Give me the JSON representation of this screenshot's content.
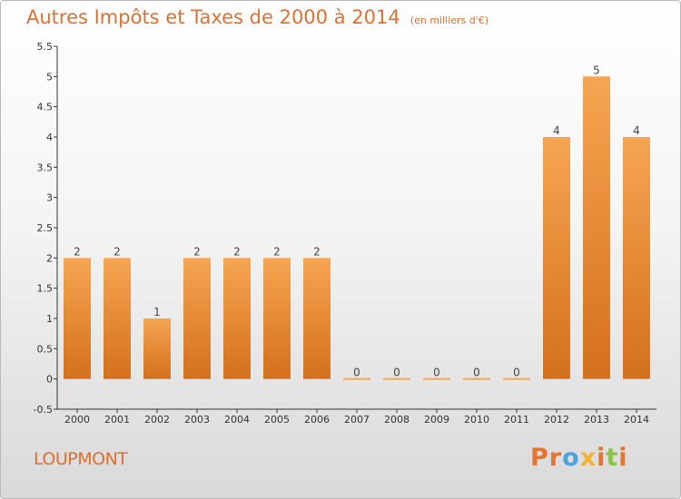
{
  "header": {
    "title": "Autres Impôts et Taxes de 2000 à 2014",
    "subtitle": "(en milliers d'€)"
  },
  "footer": {
    "commune": "LOUPMONT",
    "logo_text": "Proxiti"
  },
  "colors": {
    "title": "#e0702f",
    "bar_top": "#f6a552",
    "bar_bottom": "#d4701d",
    "axis": "#333333"
  },
  "chart_data": {
    "type": "bar",
    "categories": [
      "2000",
      "2001",
      "2002",
      "2003",
      "2004",
      "2005",
      "2006",
      "2007",
      "2008",
      "2009",
      "2010",
      "2011",
      "2012",
      "2013",
      "2014"
    ],
    "values": [
      2,
      2,
      1,
      2,
      2,
      2,
      2,
      0,
      0,
      0,
      0,
      0,
      4,
      5,
      4
    ],
    "data_labels": [
      "2",
      "2",
      "1",
      "2",
      "2",
      "2",
      "2",
      "0",
      "0",
      "0",
      "0",
      "0",
      "4",
      "5",
      "4"
    ],
    "yticks": [
      "-0.5",
      "0",
      "0.5",
      "1",
      "1.5",
      "2",
      "2.5",
      "3",
      "3.5",
      "4",
      "4.5",
      "5",
      "5.5"
    ],
    "ylim": [
      -0.5,
      5.5
    ],
    "title": "Autres Impôts et Taxes de 2000 à 2014",
    "xlabel": "",
    "ylabel": "",
    "grid": false
  }
}
